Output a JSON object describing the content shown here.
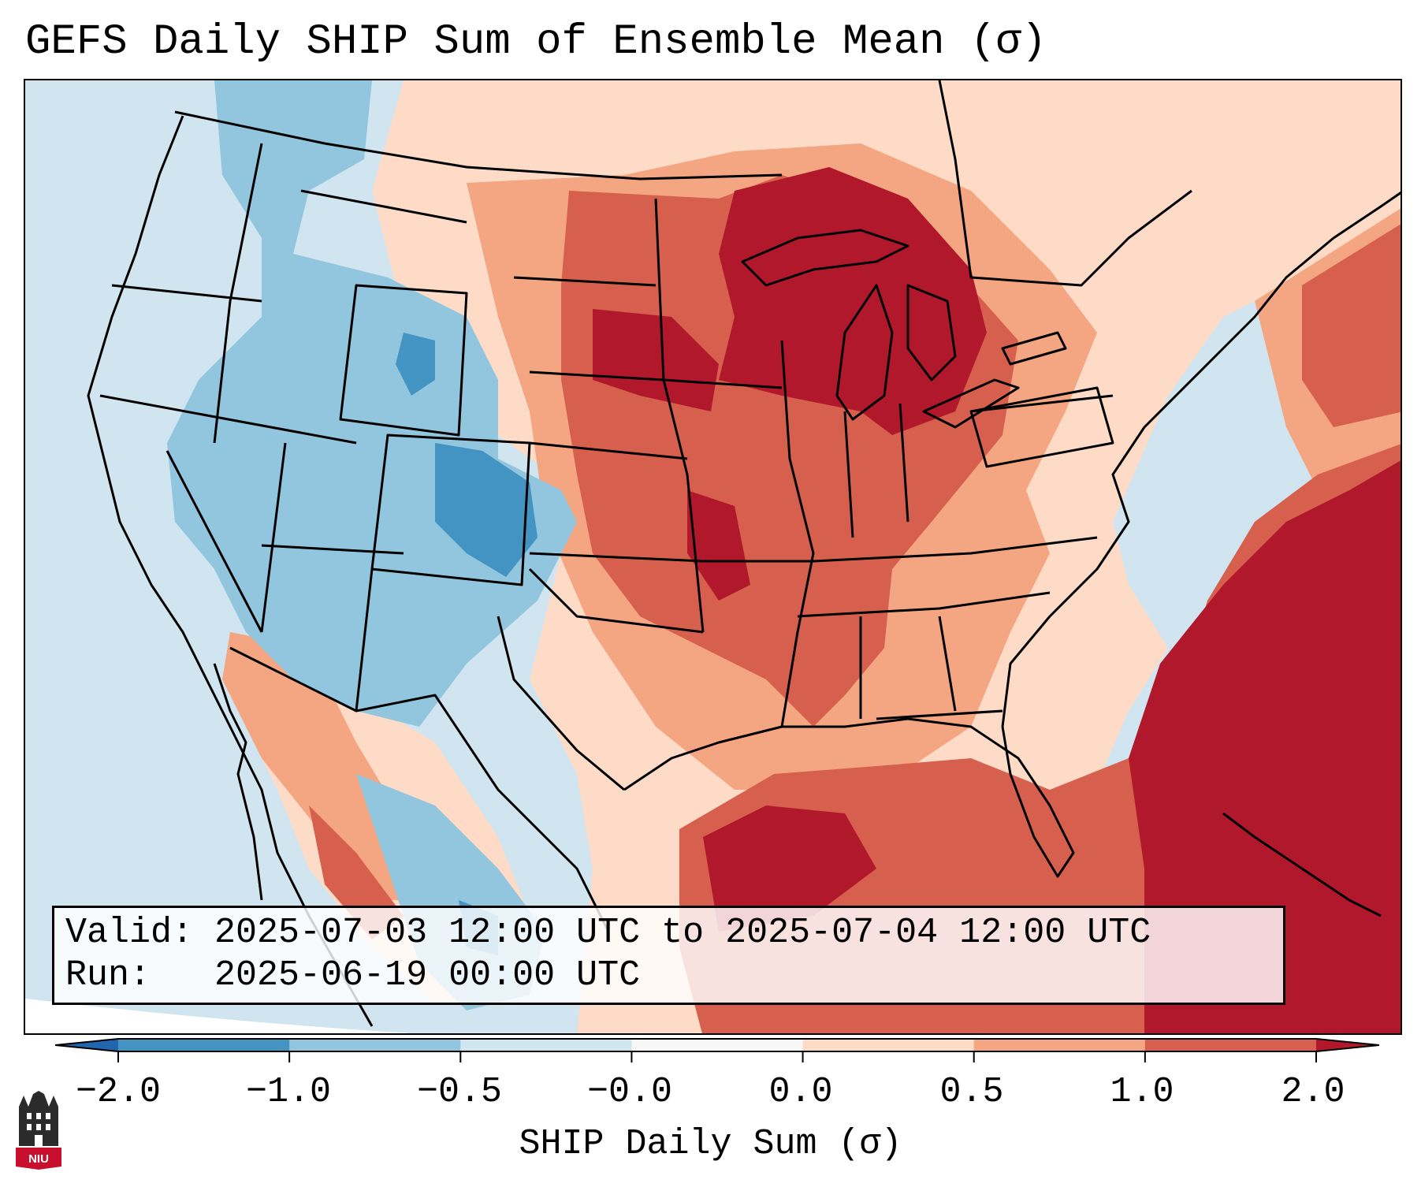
{
  "title": "GEFS Daily SHIP Sum of Ensemble Mean (σ)",
  "info": {
    "valid_line": "Valid: 2025-07-03 12:00 UTC to 2025-07-04 12:00 UTC",
    "run_line": "Run:   2025-06-19 00:00 UTC"
  },
  "colorbar": {
    "label": "SHIP Daily Sum (σ)",
    "ticks": [
      "−2.0",
      "−1.0",
      "−0.5",
      "−0.0",
      "0.0",
      "0.5",
      "1.0",
      "2.0"
    ],
    "bins": [
      {
        "range": "below -2.0",
        "color": "#2166ac"
      },
      {
        "range": "-2.0 to -1.0",
        "color": "#4393c3"
      },
      {
        "range": "-1.0 to -0.5",
        "color": "#92c5de"
      },
      {
        "range": "-0.5 to -0.0",
        "color": "#d1e5f0"
      },
      {
        "range": "-0.0 to 0.0",
        "color": "#f7f7f7"
      },
      {
        "range": "0.0 to 0.5",
        "color": "#fddbc7"
      },
      {
        "range": "0.5 to 1.0",
        "color": "#f4a582"
      },
      {
        "range": "1.0 to 2.0",
        "color": "#d6604d"
      },
      {
        "range": "above 2.0",
        "color": "#b2182b"
      }
    ]
  },
  "map": {
    "region": "Contiguous United States",
    "projection": "Lambert Conformal",
    "field": "SHIP daily sum anomaly (ensemble mean)"
  },
  "logo": {
    "text": "NIU"
  }
}
